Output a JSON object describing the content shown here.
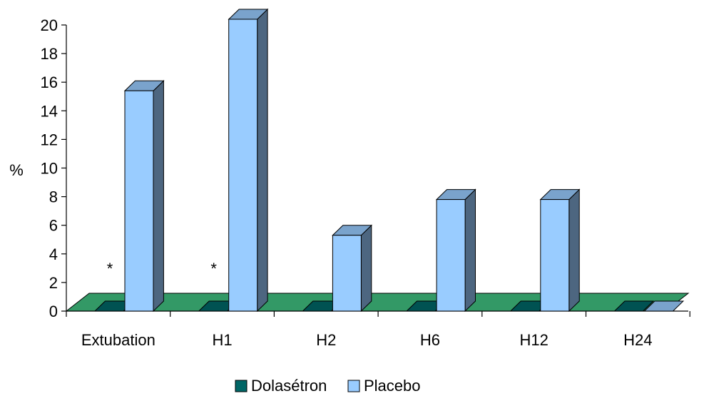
{
  "chart_data": {
    "type": "bar",
    "title": "",
    "xlabel": "",
    "ylabel": "%",
    "ylim": [
      0,
      20
    ],
    "yticks": [
      0,
      2,
      4,
      6,
      8,
      10,
      12,
      14,
      16,
      18,
      20
    ],
    "categories": [
      "Extubation",
      "H1",
      "H2",
      "H6",
      "H12",
      "H24"
    ],
    "series": [
      {
        "name": "Dolasétron",
        "values": [
          0,
          0,
          0,
          0,
          0,
          0
        ]
      },
      {
        "name": "Placebo",
        "values": [
          15.4,
          20.4,
          5.3,
          7.8,
          7.8,
          0
        ]
      }
    ],
    "annotations": [
      {
        "category": "Extubation",
        "text": "*"
      },
      {
        "category": "H1",
        "text": "*"
      }
    ],
    "grid": false,
    "legend_position": "bottom",
    "style": "3d-column",
    "colors": {
      "floor": "#339966",
      "dolasetron": "#006666",
      "placebo_front": "#99ccff",
      "placebo_top": "#7aa3cc",
      "placebo_side": "#4d6680",
      "dolasetron_top": "#005252"
    }
  }
}
